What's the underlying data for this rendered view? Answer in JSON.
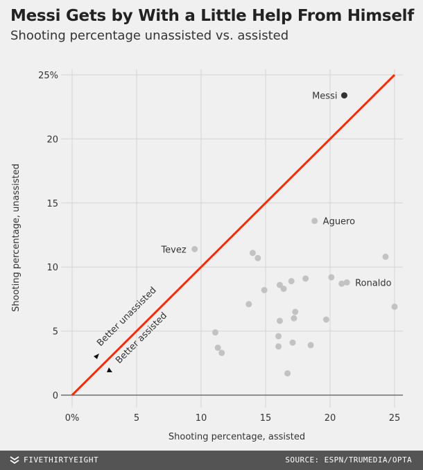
{
  "header": {
    "title": "Messi Gets by With a Little Help From Himself",
    "subtitle": "Shooting percentage unassisted vs. assisted"
  },
  "footer": {
    "brand": "FIVETHIRTYEIGHT",
    "source": "SOURCE: ESPN/TRUMEDIA/OPTA"
  },
  "colors": {
    "background": "#f0f0f0",
    "grid": "#d4d4d4",
    "diagonal": "#ff2700",
    "point": "#c2c2c2",
    "highlight": "#333333",
    "footer": "#545454"
  },
  "chart_data": {
    "type": "scatter",
    "xlabel": "Shooting percentage, assisted",
    "ylabel": "Shooting percentage, unassisted",
    "xlim": [
      0,
      25
    ],
    "ylim": [
      0,
      25
    ],
    "x_ticks": [
      "0%",
      "5",
      "10",
      "15",
      "20",
      "25"
    ],
    "y_ticks": [
      "0",
      "5",
      "10",
      "15",
      "20",
      "25%"
    ],
    "grid": true,
    "reference_line": {
      "from": [
        0,
        0
      ],
      "to": [
        25,
        25
      ]
    },
    "annotations": [
      "Better unassisted",
      "Better assisted"
    ],
    "points": [
      {
        "x": 21.1,
        "y": 23.4,
        "label": "Messi",
        "highlight": true
      },
      {
        "x": 18.8,
        "y": 13.6,
        "label": "Aguero"
      },
      {
        "x": 9.5,
        "y": 11.4,
        "label": "Tevez"
      },
      {
        "x": 21.3,
        "y": 8.8,
        "label": "Ronaldo"
      },
      {
        "x": 14.0,
        "y": 11.1
      },
      {
        "x": 14.4,
        "y": 10.7
      },
      {
        "x": 24.3,
        "y": 10.8
      },
      {
        "x": 20.1,
        "y": 9.2
      },
      {
        "x": 18.1,
        "y": 9.1
      },
      {
        "x": 17.0,
        "y": 8.9
      },
      {
        "x": 16.1,
        "y": 8.6
      },
      {
        "x": 16.4,
        "y": 8.3
      },
      {
        "x": 14.9,
        "y": 8.2
      },
      {
        "x": 20.9,
        "y": 8.7
      },
      {
        "x": 25.0,
        "y": 6.9
      },
      {
        "x": 13.7,
        "y": 7.1
      },
      {
        "x": 17.3,
        "y": 6.5
      },
      {
        "x": 17.2,
        "y": 6.0
      },
      {
        "x": 16.1,
        "y": 5.8
      },
      {
        "x": 19.7,
        "y": 5.9
      },
      {
        "x": 11.1,
        "y": 4.9
      },
      {
        "x": 16.0,
        "y": 4.6
      },
      {
        "x": 17.1,
        "y": 4.1
      },
      {
        "x": 16.0,
        "y": 3.8
      },
      {
        "x": 18.5,
        "y": 3.9
      },
      {
        "x": 11.3,
        "y": 3.7
      },
      {
        "x": 11.6,
        "y": 3.3
      },
      {
        "x": 16.7,
        "y": 1.7
      }
    ]
  }
}
